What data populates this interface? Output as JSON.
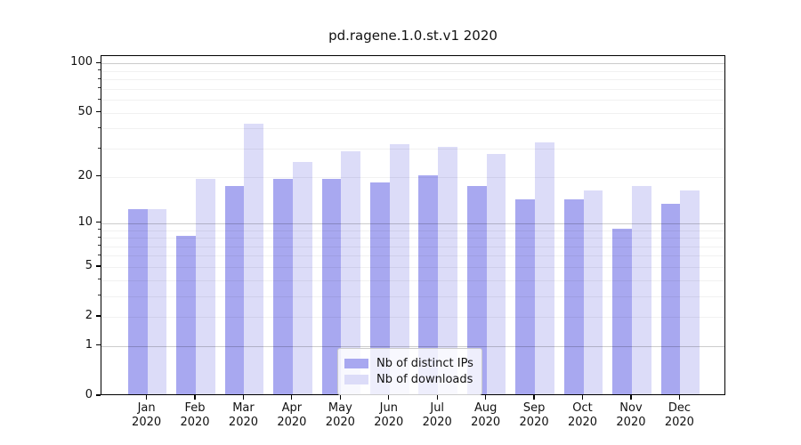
{
  "chart_data": {
    "type": "bar",
    "title": "pd.ragene.1.0.st.v1 2020",
    "categories": [
      "Jan",
      "Feb",
      "Mar",
      "Apr",
      "May",
      "Jun",
      "Jul",
      "Aug",
      "Sep",
      "Oct",
      "Nov",
      "Dec"
    ],
    "year": "2020",
    "series": [
      {
        "name": "Nb of distinct IPs",
        "color": "#a8a8f0",
        "values": [
          12,
          8,
          17,
          19,
          19,
          18,
          20,
          17,
          14,
          14,
          9,
          13
        ]
      },
      {
        "name": "Nb of downloads",
        "color": "#dcdcf8",
        "values": [
          12,
          19,
          42,
          24,
          28,
          31,
          30,
          27,
          32,
          16,
          17,
          16
        ]
      }
    ],
    "xlabel": "",
    "ylabel": "",
    "yscale": "log1p",
    "ylim": [
      0,
      112
    ],
    "yticks": [
      0,
      1,
      2,
      5,
      10,
      20,
      50,
      100
    ],
    "major_gridlines": [
      1,
      10,
      100
    ],
    "minor_gridlines": [
      2,
      3,
      4,
      5,
      6,
      7,
      8,
      9,
      20,
      30,
      40,
      50,
      60,
      70,
      80,
      90
    ],
    "grid": true,
    "legend_position": "lower center inside axes"
  }
}
